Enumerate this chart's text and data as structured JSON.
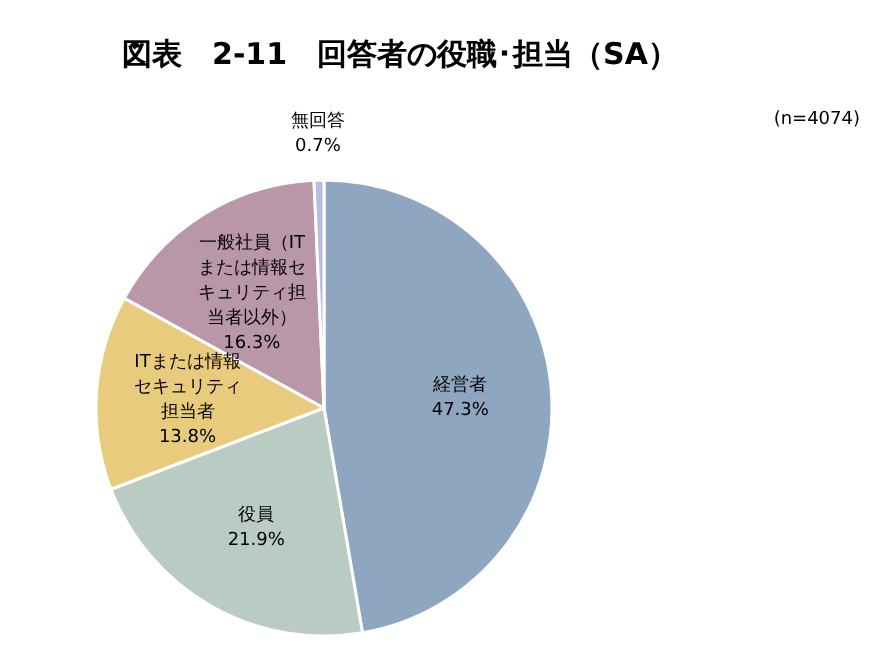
{
  "chart_data": {
    "type": "pie",
    "title": "図表　2-11　回答者の役職･担当（SA）",
    "annotations": [
      "(n=4074)"
    ],
    "categories": [
      "経営者",
      "役員",
      "ITまたは情報セキュリティ担当者",
      "一般社員（ITまたは情報セキュリティ担当者以外）",
      "無回答"
    ],
    "values": [
      47.3,
      21.9,
      13.8,
      16.3,
      0.7
    ],
    "value_labels": [
      "47.3%",
      "21.9%",
      "13.8%",
      "16.3%",
      "0.7%"
    ],
    "colors": [
      "#8fa6c0",
      "#b9cbc2",
      "#e9cb7e",
      "#b997a8",
      "#b9bce0"
    ]
  }
}
